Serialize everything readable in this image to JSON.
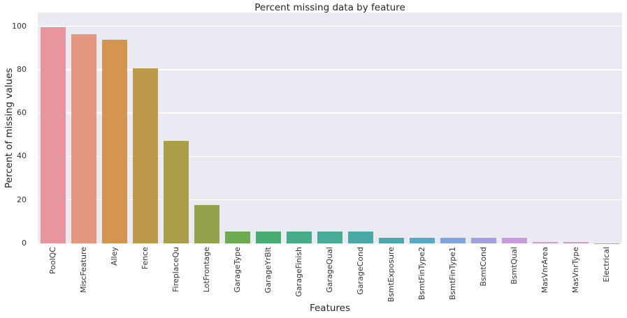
{
  "figure": {
    "background": "#ffffff",
    "plot_background": "#eaeaf2",
    "grid_color": "#ffffff",
    "text_color": "#262626",
    "tick_color": "#333333"
  },
  "chart_data": {
    "type": "bar",
    "title": "Percent missing data by feature",
    "xlabel": "Features",
    "ylabel": "Percent of missing values",
    "categories": [
      "PoolQC",
      "MiscFeature",
      "Alley",
      "Fence",
      "FireplaceQu",
      "LotFrontage",
      "GarageType",
      "GarageYrBlt",
      "GarageFinish",
      "GarageQual",
      "GarageCond",
      "BsmtExposure",
      "BsmtFinType2",
      "BsmtFinType1",
      "BsmtCond",
      "BsmtQual",
      "MasVnrArea",
      "MasVnrType",
      "Electrical"
    ],
    "values": [
      99.5,
      96.3,
      93.8,
      80.7,
      47.3,
      17.7,
      5.5,
      5.5,
      5.5,
      5.5,
      5.5,
      2.6,
      2.6,
      2.5,
      2.5,
      2.5,
      0.55,
      0.55,
      0.07
    ],
    "bar_colors": [
      "#e8959e",
      "#e5967e",
      "#d4964f",
      "#bd9a49",
      "#a99f48",
      "#93a24b",
      "#6dab50",
      "#47ac70",
      "#46ab87",
      "#48aa97",
      "#4aa9a4",
      "#4ba8ae",
      "#56a8c8",
      "#7fa6dc",
      "#a3a0e0",
      "#c89ade",
      "#dc95d3",
      "#e692bb",
      "#e8949d"
    ],
    "yticks": [
      0,
      20,
      40,
      60,
      80,
      100
    ],
    "ylim": [
      0,
      106.3
    ],
    "grid": true,
    "legend": "none"
  }
}
